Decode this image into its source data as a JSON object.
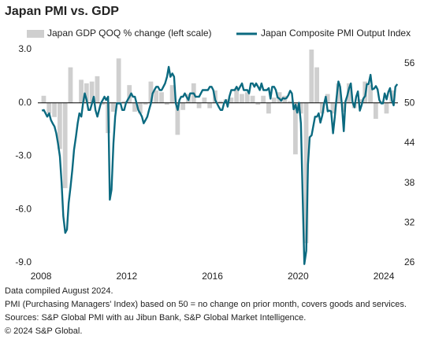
{
  "chart_data": {
    "type": "bar-line",
    "title": "Japan PMI vs. GDP",
    "xlim": [
      2007.85,
      2024.66
    ],
    "xticks": [
      2008,
      2012,
      2016,
      2020,
      2024
    ],
    "ylim": [
      -9,
      3
    ],
    "yticks": [
      {
        "value": 3,
        "label": "3.0"
      },
      {
        "value": 0,
        "label": "0.0"
      },
      {
        "value": -3,
        "label": "-3.0"
      },
      {
        "value": -6,
        "label": "-6.0"
      },
      {
        "value": -9,
        "label": "-9.0"
      }
    ],
    "y2lim": [
      26,
      58.1
    ],
    "y2ticks": [
      26,
      32,
      38,
      44,
      50,
      56
    ],
    "series": [
      {
        "name": "Japan GDP QOQ % change (left scale)",
        "type": "bar",
        "color": "#cfcfcf",
        "x": [
          2008.125,
          2008.375,
          2008.625,
          2008.875,
          2009.125,
          2009.375,
          2009.625,
          2009.875,
          2010.125,
          2010.375,
          2010.625,
          2010.875,
          2011.125,
          2011.375,
          2011.625,
          2011.875,
          2012.125,
          2012.375,
          2012.625,
          2012.875,
          2013.125,
          2013.375,
          2013.625,
          2013.875,
          2014.125,
          2014.375,
          2014.625,
          2014.875,
          2015.125,
          2015.375,
          2015.625,
          2015.875,
          2016.125,
          2016.375,
          2016.625,
          2016.875,
          2017.125,
          2017.375,
          2017.625,
          2017.875,
          2018.125,
          2018.375,
          2018.625,
          2018.875,
          2019.125,
          2019.375,
          2019.625,
          2019.875,
          2020.125,
          2020.375,
          2020.625,
          2020.875,
          2021.125,
          2021.375,
          2021.625,
          2021.875,
          2022.125,
          2022.375,
          2022.625,
          2022.875,
          2023.125,
          2023.375,
          2023.625,
          2023.875,
          2024.125,
          2024.375
        ],
        "values": [
          0.4,
          -0.6,
          -0.8,
          -2.6,
          -4.8,
          2.0,
          0.0,
          1.3,
          1.1,
          1.2,
          1.5,
          -0.1,
          -1.7,
          -0.5,
          2.5,
          0.1,
          1.0,
          -0.5,
          -0.6,
          -0.1,
          1.2,
          0.7,
          0.6,
          -0.1,
          1.0,
          -1.8,
          -0.4,
          0.5,
          1.1,
          -0.3,
          0.3,
          -0.3,
          0.7,
          0.1,
          0.2,
          0.3,
          0.8,
          0.5,
          0.6,
          0.4,
          -0.1,
          0.4,
          -0.6,
          0.3,
          0.6,
          0.4,
          0.1,
          -2.9,
          -0.6,
          -7.9,
          3.0,
          2.0,
          -0.6,
          0.5,
          -0.6,
          1.1,
          -0.5,
          1.1,
          -0.3,
          0.2,
          1.2,
          1.0,
          -0.9,
          0.1,
          -0.6,
          0.7
        ]
      },
      {
        "name": "Japan Composite PMI Output Index",
        "type": "line",
        "axis": "y2",
        "color": "#0b6a80",
        "x": [
          2008.04,
          2008.13,
          2008.21,
          2008.29,
          2008.38,
          2008.46,
          2008.54,
          2008.63,
          2008.71,
          2008.79,
          2008.88,
          2008.96,
          2009.04,
          2009.13,
          2009.21,
          2009.29,
          2009.38,
          2009.46,
          2009.54,
          2009.63,
          2009.71,
          2009.79,
          2009.88,
          2009.96,
          2010.04,
          2010.13,
          2010.21,
          2010.29,
          2010.38,
          2010.46,
          2010.54,
          2010.63,
          2010.71,
          2010.79,
          2010.88,
          2010.96,
          2011.04,
          2011.13,
          2011.21,
          2011.29,
          2011.38,
          2011.46,
          2011.54,
          2011.63,
          2011.71,
          2011.79,
          2011.88,
          2011.96,
          2012.04,
          2012.13,
          2012.21,
          2012.29,
          2012.38,
          2012.46,
          2012.54,
          2012.63,
          2012.71,
          2012.79,
          2012.88,
          2012.96,
          2013.04,
          2013.13,
          2013.21,
          2013.29,
          2013.38,
          2013.46,
          2013.54,
          2013.63,
          2013.71,
          2013.79,
          2013.88,
          2013.96,
          2014.04,
          2014.13,
          2014.21,
          2014.29,
          2014.38,
          2014.46,
          2014.54,
          2014.63,
          2014.71,
          2014.79,
          2014.88,
          2014.96,
          2015.04,
          2015.13,
          2015.21,
          2015.29,
          2015.38,
          2015.46,
          2015.54,
          2015.63,
          2015.71,
          2015.79,
          2015.88,
          2015.96,
          2016.04,
          2016.13,
          2016.21,
          2016.29,
          2016.38,
          2016.46,
          2016.54,
          2016.63,
          2016.71,
          2016.79,
          2016.88,
          2016.96,
          2017.04,
          2017.13,
          2017.21,
          2017.29,
          2017.38,
          2017.46,
          2017.54,
          2017.63,
          2017.71,
          2017.79,
          2017.88,
          2017.96,
          2018.04,
          2018.13,
          2018.21,
          2018.29,
          2018.38,
          2018.46,
          2018.54,
          2018.63,
          2018.71,
          2018.79,
          2018.88,
          2018.96,
          2019.04,
          2019.13,
          2019.21,
          2019.29,
          2019.38,
          2019.46,
          2019.54,
          2019.63,
          2019.71,
          2019.79,
          2019.88,
          2019.96,
          2020.04,
          2020.13,
          2020.21,
          2020.29,
          2020.38,
          2020.46,
          2020.54,
          2020.63,
          2020.71,
          2020.79,
          2020.88,
          2020.96,
          2021.04,
          2021.13,
          2021.21,
          2021.29,
          2021.38,
          2021.46,
          2021.54,
          2021.63,
          2021.71,
          2021.79,
          2021.88,
          2021.96,
          2022.04,
          2022.13,
          2022.21,
          2022.29,
          2022.38,
          2022.46,
          2022.54,
          2022.63,
          2022.71,
          2022.79,
          2022.88,
          2022.96,
          2023.04,
          2023.13,
          2023.21,
          2023.29,
          2023.38,
          2023.46,
          2023.54,
          2023.63,
          2023.71,
          2023.79,
          2023.88,
          2023.96,
          2024.04,
          2024.13,
          2024.21,
          2024.29,
          2024.38,
          2024.46,
          2024.54,
          2024.63
        ],
        "values": [
          48.9,
          49,
          48.5,
          48,
          48.5,
          47.5,
          47,
          46.5,
          45.5,
          44,
          42,
          38,
          33,
          30.5,
          31,
          35,
          37.5,
          40,
          43,
          45,
          47,
          48.5,
          48,
          50,
          51.5,
          50.5,
          49,
          49,
          50,
          51,
          49,
          48,
          49,
          50,
          50.5,
          51,
          50.5,
          51,
          35.5,
          37,
          44,
          48,
          50,
          50,
          50,
          49,
          49,
          50,
          50.5,
          51,
          51.5,
          51,
          51,
          50,
          49,
          48.5,
          48,
          47,
          47.5,
          48,
          49,
          50,
          51.5,
          52,
          52.5,
          52.5,
          52,
          52,
          52.5,
          53,
          54,
          55.5,
          54,
          54.5,
          54,
          50,
          49,
          50.5,
          51,
          51,
          51.5,
          51,
          50.5,
          51.5,
          51.5,
          51.5,
          51,
          51,
          51,
          51.5,
          52,
          52,
          52,
          52,
          52.5,
          52.5,
          52,
          50.5,
          50,
          49.5,
          49,
          49,
          50,
          50.5,
          49.5,
          51,
          52,
          52,
          52,
          52.5,
          52,
          52.5,
          53,
          52,
          52,
          52,
          51.5,
          53,
          53,
          52.5,
          53,
          52.5,
          52,
          53,
          52,
          52,
          52,
          52.3,
          50.7,
          52.5,
          52.5,
          52,
          50.9,
          50.7,
          50.4,
          50.8,
          50.7,
          50.8,
          51.2,
          51.9,
          51.5,
          49.1,
          49.8,
          48.6,
          50.1,
          47,
          36.2,
          25.8,
          27.8,
          40.8,
          44.9,
          45.2,
          46.6,
          48,
          48,
          48.5,
          47.1,
          48.2,
          49.9,
          51,
          48.8,
          48.9,
          48.8,
          45.5,
          47.9,
          50.7,
          53.3,
          52.5,
          49.9,
          45.8,
          50.3,
          51.1,
          52.3,
          53,
          50.2,
          49.4,
          51,
          51.8,
          48.9,
          49.7,
          50.7,
          51.1,
          52.9,
          52.9,
          54.3,
          52.1,
          52.2,
          52.6,
          52.1,
          50.5,
          50,
          50,
          51.5,
          50.6,
          51.7,
          52.3,
          50.4,
          49.7,
          52.5,
          52.9
        ]
      }
    ],
    "notes": [
      "Data compiled August 2024.",
      "PMI (Purchasing Managers' Index) based on 50 = no change on prior month, covers goods and services.",
      "Sources: S&P Global PMI with au Jibun Bank, S&P Global Market Intelligence.",
      "© 2024 S&P Global."
    ]
  }
}
